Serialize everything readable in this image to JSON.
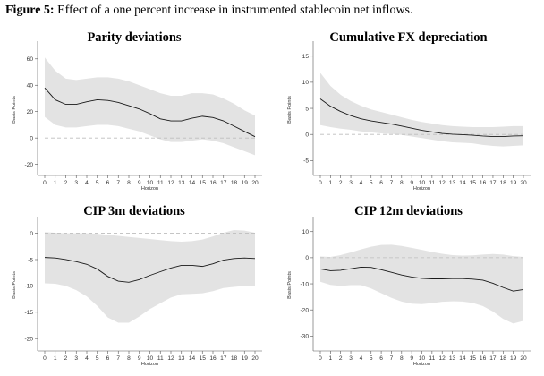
{
  "figure": {
    "label": "Figure 5:",
    "caption": "Effect of a one percent increase in instrumented stablecoin net inflows."
  },
  "chart_data": [
    {
      "type": "line",
      "title": "Parity deviations",
      "xlabel": "Horizon",
      "ylabel": "Basis Points",
      "x": [
        0,
        1,
        2,
        3,
        4,
        5,
        6,
        7,
        8,
        9,
        10,
        11,
        12,
        13,
        14,
        15,
        16,
        17,
        18,
        19,
        20
      ],
      "xticks": [
        0,
        1,
        2,
        3,
        4,
        5,
        6,
        7,
        8,
        9,
        10,
        11,
        12,
        13,
        14,
        15,
        16,
        17,
        18,
        19,
        20
      ],
      "ylim": [
        -25,
        68
      ],
      "yticks": [
        -20,
        0,
        20,
        40,
        60
      ],
      "series": [
        {
          "name": "estimate",
          "values": [
            38,
            29,
            25.5,
            25.5,
            27.5,
            29,
            28.5,
            27,
            24.5,
            22,
            18.5,
            14.5,
            13,
            13,
            15,
            16.5,
            15.5,
            13,
            9,
            5,
            1
          ]
        },
        {
          "name": "upper",
          "values": [
            61,
            51,
            45,
            44,
            45,
            46,
            46,
            45,
            43,
            40,
            37,
            34,
            32,
            32,
            34,
            34,
            33,
            30,
            26,
            21,
            17
          ]
        },
        {
          "name": "lower",
          "values": [
            16,
            10,
            8,
            8,
            9,
            10,
            10,
            9,
            7,
            5,
            2,
            -1,
            -3,
            -3,
            -2,
            -1,
            -2,
            -4,
            -7,
            -10,
            -13
          ]
        }
      ],
      "reference_line": 0
    },
    {
      "type": "line",
      "title": "Cumulative FX depreciation",
      "xlabel": "Horizon",
      "ylabel": "Basis Points",
      "x": [
        0,
        1,
        2,
        3,
        4,
        5,
        6,
        7,
        8,
        9,
        10,
        11,
        12,
        13,
        14,
        15,
        16,
        17,
        18,
        19,
        20
      ],
      "xticks": [
        0,
        1,
        2,
        3,
        4,
        5,
        6,
        7,
        8,
        9,
        10,
        11,
        12,
        13,
        14,
        15,
        16,
        17,
        18,
        19,
        20
      ],
      "ylim": [
        -7,
        16.5
      ],
      "yticks": [
        -5,
        0,
        5,
        10,
        15
      ],
      "series": [
        {
          "name": "estimate",
          "values": [
            6.8,
            5.4,
            4.4,
            3.6,
            3.0,
            2.6,
            2.3,
            2.0,
            1.6,
            1.2,
            0.8,
            0.5,
            0.2,
            0.05,
            -0.05,
            -0.15,
            -0.3,
            -0.4,
            -0.4,
            -0.3,
            -0.25
          ]
        },
        {
          "name": "upper",
          "values": [
            11.8,
            9.3,
            7.6,
            6.4,
            5.5,
            4.8,
            4.3,
            3.8,
            3.3,
            2.8,
            2.4,
            2.1,
            1.8,
            1.6,
            1.5,
            1.4,
            1.4,
            1.4,
            1.5,
            1.6,
            1.6
          ]
        },
        {
          "name": "lower",
          "values": [
            1.8,
            1.4,
            1.1,
            0.9,
            0.6,
            0.4,
            0.2,
            0.1,
            -0.1,
            -0.4,
            -0.7,
            -1.0,
            -1.3,
            -1.5,
            -1.6,
            -1.7,
            -2.0,
            -2.2,
            -2.3,
            -2.2,
            -2.1
          ]
        }
      ],
      "reference_line": 0
    },
    {
      "type": "line",
      "title": "CIP 3m deviations",
      "xlabel": "Horizon",
      "ylabel": "Basis Points",
      "x": [
        0,
        1,
        2,
        3,
        4,
        5,
        6,
        7,
        8,
        9,
        10,
        11,
        12,
        13,
        14,
        15,
        16,
        17,
        18,
        19,
        20
      ],
      "xticks": [
        0,
        1,
        2,
        3,
        4,
        5,
        6,
        7,
        8,
        9,
        10,
        11,
        12,
        13,
        14,
        15,
        16,
        17,
        18,
        19,
        20
      ],
      "ylim": [
        -21.5,
        1.8
      ],
      "yticks": [
        -20,
        -15,
        -10,
        -5,
        0
      ],
      "series": [
        {
          "name": "estimate",
          "values": [
            -4.6,
            -4.7,
            -5,
            -5.4,
            -5.9,
            -6.8,
            -8.2,
            -9.1,
            -9.3,
            -8.8,
            -8.0,
            -7.3,
            -6.6,
            -6.1,
            -6.1,
            -6.3,
            -5.8,
            -5.1,
            -4.8,
            -4.7,
            -4.8
          ]
        },
        {
          "name": "upper",
          "values": [
            0.2,
            0.1,
            0,
            0,
            0,
            -0.1,
            -0.3,
            -0.5,
            -0.7,
            -0.9,
            -1.1,
            -1.3,
            -1.5,
            -1.6,
            -1.5,
            -1.2,
            -0.6,
            0.1,
            0.6,
            0.5,
            0.1
          ]
        },
        {
          "name": "lower",
          "values": [
            -9.5,
            -9.6,
            -10,
            -10.8,
            -12,
            -13.8,
            -16,
            -17,
            -17,
            -15.8,
            -14.4,
            -13.3,
            -12.2,
            -11.6,
            -11.5,
            -11.4,
            -11,
            -10.4,
            -10.2,
            -10,
            -10
          ]
        }
      ],
      "reference_line": 0
    },
    {
      "type": "line",
      "title": "CIP 12m deviations",
      "xlabel": "Horizon",
      "ylabel": "Basis Points",
      "x": [
        0,
        1,
        2,
        3,
        4,
        5,
        6,
        7,
        8,
        9,
        10,
        11,
        12,
        13,
        14,
        15,
        16,
        17,
        18,
        19,
        20
      ],
      "xticks": [
        0,
        1,
        2,
        3,
        4,
        5,
        6,
        7,
        8,
        9,
        10,
        11,
        12,
        13,
        14,
        15,
        16,
        17,
        18,
        19,
        20
      ],
      "ylim": [
        -34,
        13
      ],
      "yticks": [
        -30,
        -20,
        -10,
        0,
        10
      ],
      "series": [
        {
          "name": "estimate",
          "values": [
            -4.3,
            -5,
            -4.8,
            -4.2,
            -3.6,
            -3.7,
            -4.6,
            -5.6,
            -6.6,
            -7.4,
            -7.9,
            -8.1,
            -8.1,
            -8,
            -8,
            -8.2,
            -8.6,
            -9.8,
            -11.4,
            -12.8,
            -12.2
          ]
        },
        {
          "name": "upper",
          "values": [
            0.5,
            0.3,
            1.0,
            2.0,
            3.2,
            4.2,
            4.9,
            5.0,
            4.5,
            3.8,
            3.0,
            2.2,
            1.5,
            1.0,
            0.8,
            0.9,
            1.2,
            1.4,
            1.2,
            0.6,
            0.3
          ]
        },
        {
          "name": "lower",
          "values": [
            -9.2,
            -10.4,
            -10.8,
            -10.5,
            -10.5,
            -11.8,
            -13.6,
            -15.4,
            -16.8,
            -17.6,
            -17.8,
            -17.4,
            -16.9,
            -16.7,
            -16.8,
            -17.3,
            -18.5,
            -20.6,
            -23.4,
            -25.2,
            -24.2
          ]
        }
      ],
      "reference_line": 0
    }
  ]
}
